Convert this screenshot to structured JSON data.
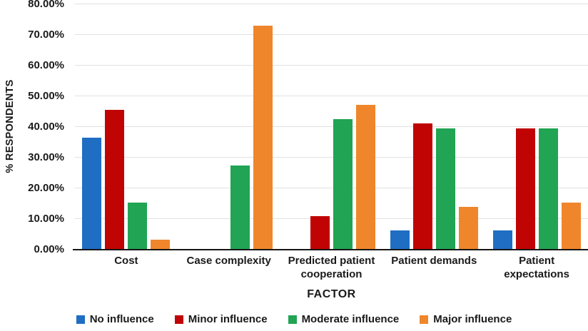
{
  "chart_data": {
    "type": "bar",
    "title": "",
    "ylabel": "% RESPONDENTS",
    "xlabel": "FACTOR",
    "ylim": [
      0,
      80
    ],
    "ytick_step": 10,
    "ytick_labels": [
      "0.00%",
      "10.00%",
      "20.00%",
      "30.00%",
      "40.00%",
      "50.00%",
      "60.00%",
      "70.00%",
      "80.00%"
    ],
    "grid": "horizontal",
    "legend_position": "bottom",
    "categories": [
      "Cost",
      "Case complexity",
      "Predicted patient cooperation",
      "Patient demands",
      "Patient expectations"
    ],
    "series": [
      {
        "name": "No influence",
        "color": "#1f6ec4",
        "values": [
          36.36,
          0,
          0,
          6.06,
          6.06
        ]
      },
      {
        "name": "Minor influence",
        "color": "#c00404",
        "values": [
          45.45,
          0,
          10.61,
          40.91,
          39.39
        ]
      },
      {
        "name": "Moderate influence",
        "color": "#21a453",
        "values": [
          15.15,
          27.27,
          42.42,
          39.39,
          39.39
        ]
      },
      {
        "name": "Major influence",
        "color": "#f0862b",
        "values": [
          3.03,
          72.73,
          46.97,
          13.64,
          15.15
        ]
      }
    ]
  }
}
